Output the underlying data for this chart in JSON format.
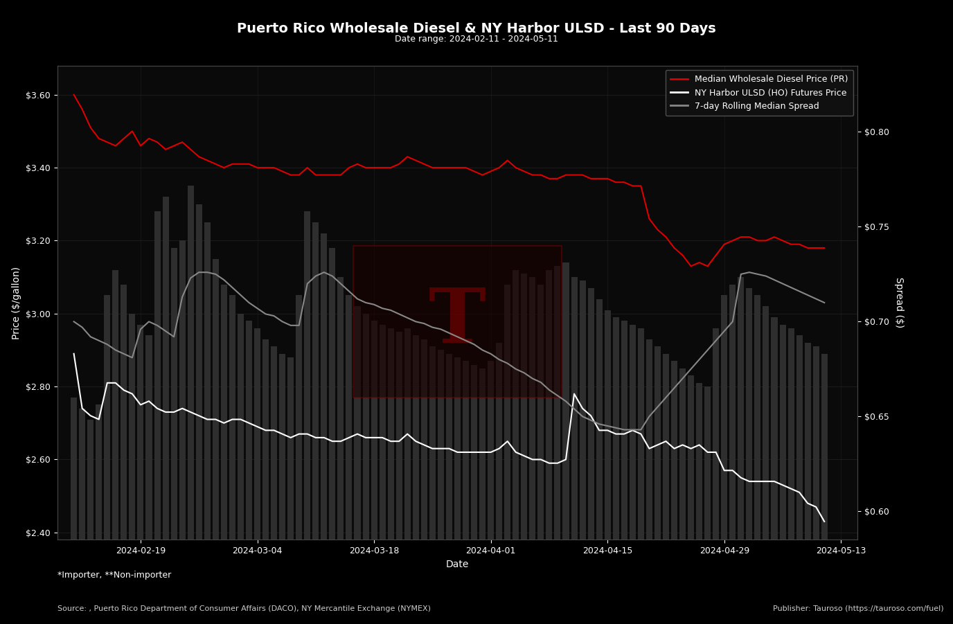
{
  "title": "Puerto Rico Wholesale Diesel & NY Harbor ULSD - Last 90 Days",
  "subtitle": "Date range: 2024-02-11 - 2024-05-11",
  "xlabel": "Date",
  "ylabel_left": "Price ($/gallon)",
  "ylabel_right": "Spread ($)",
  "background_color": "#000000",
  "plot_bg_color": "#0a0a0a",
  "grid_color": "#2a2a2a",
  "text_color": "#ffffff",
  "legend_labels": [
    "Median Wholesale Diesel Price (PR)",
    "NY Harbor ULSD (HO) Futures Price",
    "7-day Rolling Median Spread"
  ],
  "legend_colors": [
    "#ff0000",
    "#ffffff",
    "#888888"
  ],
  "footer_left": "*Importer, **Non-importer",
  "footer_source": "Source: , Puerto Rico Department of Consumer Affairs (DACO), NY Mercantile Exchange (NYMEX)",
  "footer_publisher": "Publisher: Tauroso (https://tauroso.com/fuel)",
  "ylim_left": [
    2.38,
    3.68
  ],
  "ylim_right": [
    0.585,
    0.835
  ],
  "dates": [
    "2024-02-11",
    "2024-02-12",
    "2024-02-13",
    "2024-02-14",
    "2024-02-15",
    "2024-02-16",
    "2024-02-17",
    "2024-02-18",
    "2024-02-19",
    "2024-02-20",
    "2024-02-21",
    "2024-02-22",
    "2024-02-23",
    "2024-02-24",
    "2024-02-25",
    "2024-02-26",
    "2024-02-27",
    "2024-02-28",
    "2024-02-29",
    "2024-03-01",
    "2024-03-02",
    "2024-03-03",
    "2024-03-04",
    "2024-03-05",
    "2024-03-06",
    "2024-03-07",
    "2024-03-08",
    "2024-03-09",
    "2024-03-10",
    "2024-03-11",
    "2024-03-12",
    "2024-03-13",
    "2024-03-14",
    "2024-03-15",
    "2024-03-16",
    "2024-03-17",
    "2024-03-18",
    "2024-03-19",
    "2024-03-20",
    "2024-03-21",
    "2024-03-22",
    "2024-03-23",
    "2024-03-24",
    "2024-03-25",
    "2024-03-26",
    "2024-03-27",
    "2024-03-28",
    "2024-03-29",
    "2024-03-30",
    "2024-03-31",
    "2024-04-01",
    "2024-04-02",
    "2024-04-03",
    "2024-04-04",
    "2024-04-05",
    "2024-04-06",
    "2024-04-07",
    "2024-04-08",
    "2024-04-09",
    "2024-04-10",
    "2024-04-11",
    "2024-04-12",
    "2024-04-13",
    "2024-04-14",
    "2024-04-15",
    "2024-04-16",
    "2024-04-17",
    "2024-04-18",
    "2024-04-19",
    "2024-04-20",
    "2024-04-21",
    "2024-04-22",
    "2024-04-23",
    "2024-04-24",
    "2024-04-25",
    "2024-04-26",
    "2024-04-27",
    "2024-04-28",
    "2024-04-29",
    "2024-04-30",
    "2024-05-01",
    "2024-05-02",
    "2024-05-03",
    "2024-05-04",
    "2024-05-05",
    "2024-05-06",
    "2024-05-07",
    "2024-05-08",
    "2024-05-09",
    "2024-05-10",
    "2024-05-11"
  ],
  "wholesale_diesel": [
    3.6,
    3.56,
    3.51,
    3.48,
    3.47,
    3.46,
    3.48,
    3.5,
    3.46,
    3.48,
    3.47,
    3.45,
    3.46,
    3.47,
    3.45,
    3.43,
    3.42,
    3.41,
    3.4,
    3.41,
    3.41,
    3.41,
    3.4,
    3.4,
    3.4,
    3.39,
    3.38,
    3.38,
    3.4,
    3.38,
    3.38,
    3.38,
    3.38,
    3.4,
    3.41,
    3.4,
    3.4,
    3.4,
    3.4,
    3.41,
    3.43,
    3.42,
    3.41,
    3.4,
    3.4,
    3.4,
    3.4,
    3.4,
    3.39,
    3.38,
    3.39,
    3.4,
    3.42,
    3.4,
    3.39,
    3.38,
    3.38,
    3.37,
    3.37,
    3.38,
    3.38,
    3.38,
    3.37,
    3.37,
    3.37,
    3.36,
    3.36,
    3.35,
    3.35,
    3.26,
    3.23,
    3.21,
    3.18,
    3.16,
    3.13,
    3.14,
    3.13,
    3.16,
    3.19,
    3.2,
    3.21,
    3.21,
    3.2,
    3.2,
    3.21,
    3.2,
    3.19,
    3.19,
    3.18,
    3.18,
    3.18
  ],
  "ny_ulsd": [
    2.89,
    2.74,
    2.72,
    2.71,
    2.81,
    2.81,
    2.79,
    2.78,
    2.75,
    2.76,
    2.74,
    2.73,
    2.73,
    2.74,
    2.73,
    2.72,
    2.71,
    2.71,
    2.7,
    2.71,
    2.71,
    2.7,
    2.69,
    2.68,
    2.68,
    2.67,
    2.66,
    2.67,
    2.67,
    2.66,
    2.66,
    2.65,
    2.65,
    2.66,
    2.67,
    2.66,
    2.66,
    2.66,
    2.65,
    2.65,
    2.67,
    2.65,
    2.64,
    2.63,
    2.63,
    2.63,
    2.62,
    2.62,
    2.62,
    2.62,
    2.62,
    2.63,
    2.65,
    2.62,
    2.61,
    2.6,
    2.6,
    2.59,
    2.59,
    2.6,
    2.78,
    2.74,
    2.72,
    2.68,
    2.68,
    2.67,
    2.67,
    2.68,
    2.67,
    2.63,
    2.64,
    2.65,
    2.63,
    2.64,
    2.63,
    2.64,
    2.62,
    2.62,
    2.57,
    2.57,
    2.55,
    2.54,
    2.54,
    2.54,
    2.54,
    2.53,
    2.52,
    2.51,
    2.48,
    2.47,
    2.43
  ],
  "spread_7day": [
    0.7,
    0.697,
    0.692,
    0.69,
    0.688,
    0.685,
    0.683,
    0.681,
    0.696,
    0.7,
    0.698,
    0.695,
    0.692,
    0.713,
    0.723,
    0.726,
    0.726,
    0.725,
    0.722,
    0.718,
    0.714,
    0.71,
    0.707,
    0.704,
    0.703,
    0.7,
    0.698,
    0.698,
    0.72,
    0.724,
    0.726,
    0.724,
    0.72,
    0.716,
    0.712,
    0.71,
    0.709,
    0.707,
    0.706,
    0.704,
    0.702,
    0.7,
    0.699,
    0.697,
    0.696,
    0.694,
    0.692,
    0.69,
    0.688,
    0.685,
    0.683,
    0.68,
    0.678,
    0.675,
    0.673,
    0.67,
    0.668,
    0.664,
    0.661,
    0.658,
    0.654,
    0.65,
    0.648,
    0.646,
    0.645,
    0.644,
    0.643,
    0.643,
    0.643,
    0.65,
    0.655,
    0.66,
    0.665,
    0.67,
    0.675,
    0.68,
    0.685,
    0.69,
    0.695,
    0.7,
    0.725,
    0.726,
    0.725,
    0.724,
    0.722,
    0.72,
    0.718,
    0.716,
    0.714,
    0.712,
    0.71
  ],
  "bar_values": [
    2.77,
    2.74,
    2.71,
    2.75,
    3.05,
    3.12,
    3.08,
    3.0,
    2.97,
    2.94,
    3.28,
    3.32,
    3.18,
    3.2,
    3.35,
    3.3,
    3.25,
    3.15,
    3.08,
    3.05,
    3.0,
    2.98,
    2.96,
    2.93,
    2.91,
    2.89,
    2.88,
    3.05,
    3.28,
    3.25,
    3.22,
    3.18,
    3.1,
    3.05,
    3.02,
    3.0,
    2.98,
    2.97,
    2.96,
    2.95,
    2.96,
    2.94,
    2.93,
    2.91,
    2.9,
    2.89,
    2.88,
    2.87,
    2.86,
    2.85,
    2.87,
    2.92,
    3.08,
    3.12,
    3.11,
    3.1,
    3.08,
    3.12,
    3.13,
    3.14,
    3.1,
    3.09,
    3.07,
    3.04,
    3.01,
    2.99,
    2.98,
    2.97,
    2.96,
    2.93,
    2.91,
    2.89,
    2.87,
    2.85,
    2.83,
    2.81,
    2.8,
    2.96,
    3.05,
    3.08,
    3.1,
    3.07,
    3.05,
    3.02,
    2.99,
    2.97,
    2.96,
    2.94,
    2.92,
    2.91,
    2.89
  ]
}
